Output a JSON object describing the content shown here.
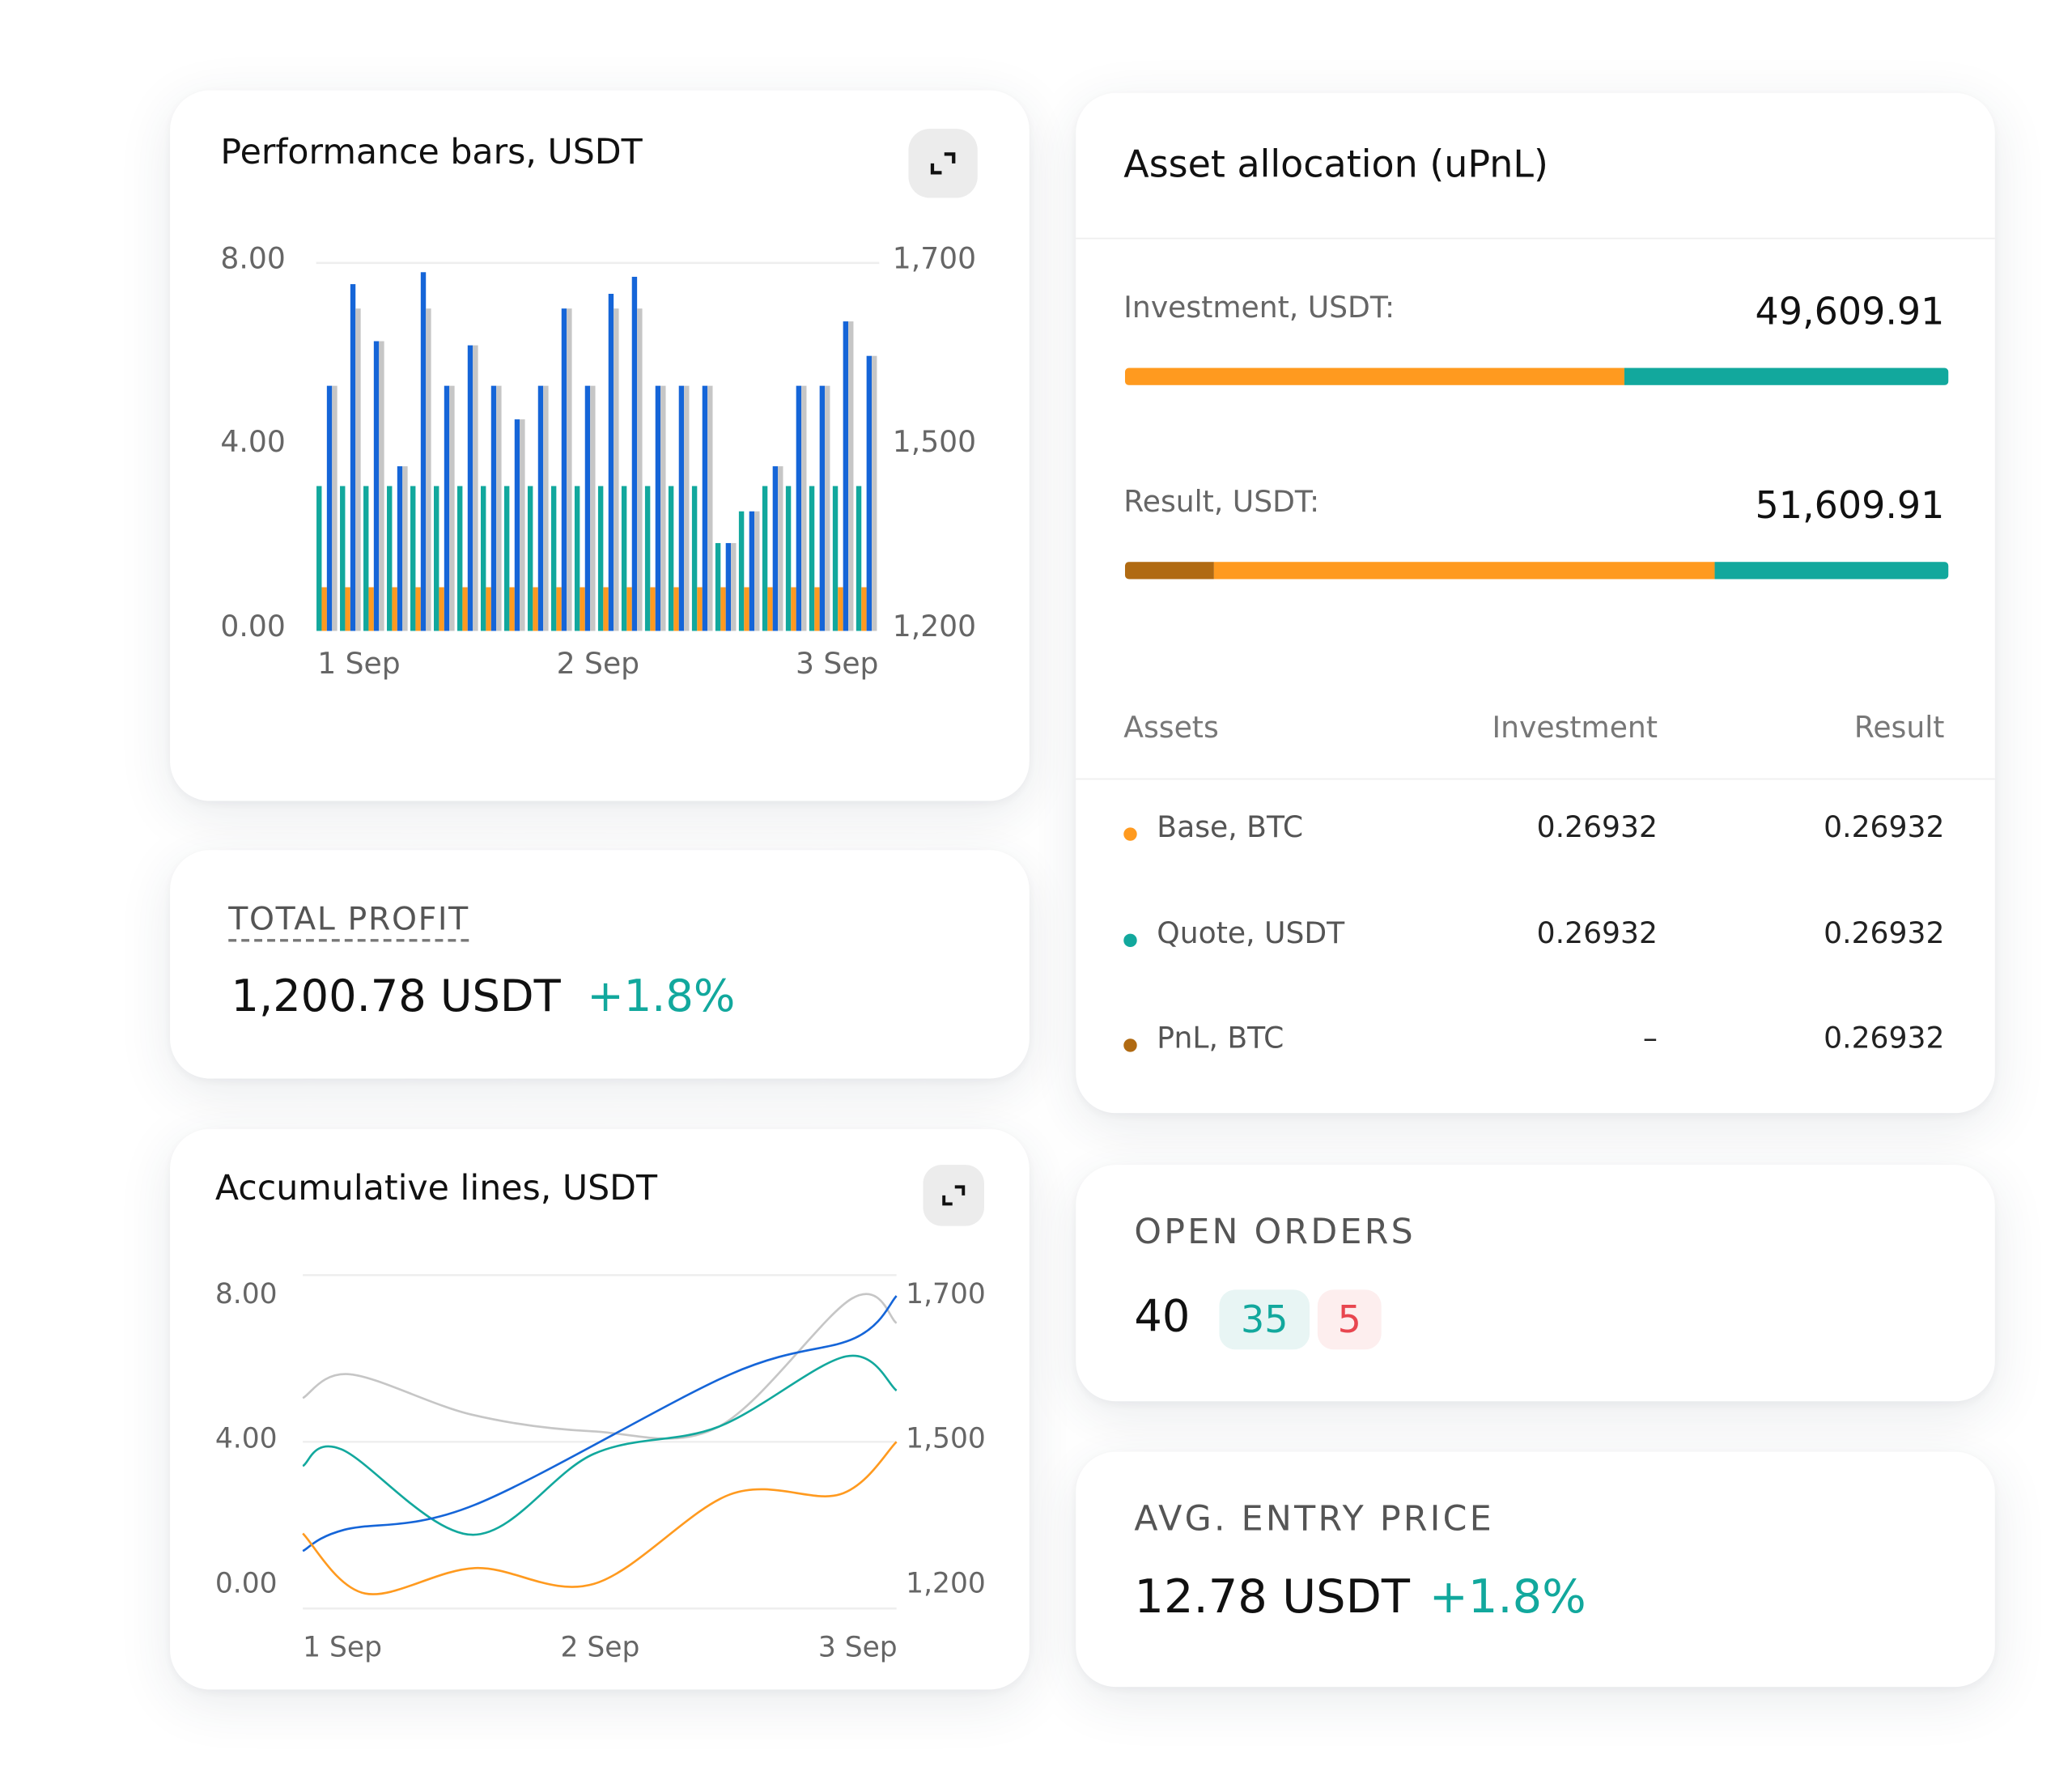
{
  "performance": {
    "title": "Performance bars, USDT",
    "expand_icon": "expand-icon",
    "left_ticks": [
      "8.00",
      "4.00",
      "0.00"
    ],
    "right_ticks": [
      "1,700",
      "1,500",
      "1,200"
    ],
    "x_ticks": [
      "1 Sep",
      "2 Sep",
      "3 Sep"
    ]
  },
  "total_profit": {
    "label": "TOTAL PROFIT",
    "value": "1,200.78 USDT",
    "change": "+1.8%"
  },
  "accumulative": {
    "title": "Accumulative lines, USDT",
    "expand_icon": "expand-icon",
    "left_ticks": [
      "8.00",
      "4.00",
      "0.00"
    ],
    "right_ticks": [
      "1,700",
      "1,500",
      "1,200"
    ],
    "x_ticks": [
      "1 Sep",
      "2 Sep",
      "3 Sep"
    ]
  },
  "allocation": {
    "title": "Asset allocation (uPnL)",
    "investment": {
      "label": "Investment, USDT:",
      "value": "49,609.91",
      "segments": [
        0.607,
        0.393
      ]
    },
    "result": {
      "label": "Result, USDT:",
      "value": "51,609.91",
      "segments": [
        0.108,
        0.608,
        0.284
      ]
    },
    "columns": [
      "Assets",
      "Investment",
      "Result"
    ],
    "rows": [
      {
        "asset": "Base, BTC",
        "investment": "0.26932",
        "result": "0.26932",
        "color": "#ff9a1f"
      },
      {
        "asset": "Quote, USDT",
        "investment": "0.26932",
        "result": "0.26932",
        "color": "#12a89d"
      },
      {
        "asset": "PnL, BTC",
        "investment": "–",
        "result": "0.26932",
        "color": "#b06a12"
      }
    ]
  },
  "open_orders": {
    "label": "OPEN ORDERS",
    "total": "40",
    "buy": "35",
    "sell": "5"
  },
  "avg_entry": {
    "label": "AVG. ENTRY PRICE",
    "value": "12.78 USDT",
    "change": "+1.8%"
  },
  "colors": {
    "blue": "#1565d8",
    "gray": "#c6c6c6",
    "teal": "#12a89d",
    "orange": "#ff9a1f",
    "dark_orange": "#b06a12",
    "sell": "#e8464f"
  },
  "chart_data": [
    {
      "type": "bar",
      "title": "Performance bars, USDT",
      "ylim": [
        0,
        8
      ],
      "y2lim": [
        1200,
        1700
      ],
      "x_ticks": [
        "1 Sep",
        "2 Sep",
        "3 Sep"
      ],
      "grid": true,
      "series": [
        {
          "color": "#12a89d",
          "values": [
            3.15,
            3.15,
            3.15,
            3.15,
            3.15,
            3.15,
            3.15,
            3.15,
            3.15,
            3.15,
            3.15,
            3.15,
            3.15,
            3.15,
            3.15,
            3.15,
            3.15,
            1.91,
            2.6,
            3.15,
            3.15,
            3.15,
            3.15,
            3.15
          ]
        },
        {
          "color": "#ff9a1f",
          "values": [
            0.95,
            0.95,
            0.95,
            0.95,
            0.95,
            0.95,
            0.95,
            0.95,
            0.95,
            0.95,
            0.95,
            0.95,
            0.95,
            0.95,
            0.95,
            0.95,
            0.95,
            0.95,
            0.95,
            0.95,
            0.95,
            0.95,
            0.95,
            0.95
          ]
        },
        {
          "color": "#1565d8",
          "values": [
            5.33,
            7.54,
            6.3,
            3.58,
            7.8,
            5.33,
            6.21,
            5.33,
            4.6,
            5.33,
            7.01,
            5.33,
            7.33,
            7.7,
            5.33,
            5.33,
            5.33,
            1.91,
            2.6,
            3.58,
            5.33,
            5.33,
            6.73,
            5.98
          ]
        },
        {
          "color": "#c6c6c6",
          "values": [
            5.33,
            7.01,
            6.3,
            3.58,
            7.01,
            5.33,
            6.21,
            5.33,
            4.6,
            5.33,
            7.01,
            5.33,
            7.01,
            7.01,
            5.33,
            5.33,
            5.33,
            1.91,
            2.6,
            3.58,
            5.33,
            5.33,
            6.73,
            5.98
          ]
        }
      ]
    },
    {
      "type": "line",
      "title": "Accumulative lines, USDT",
      "ylim": [
        0,
        8
      ],
      "y2lim": [
        1200,
        1700
      ],
      "x_ticks": [
        "1 Sep",
        "2 Sep",
        "3 Sep"
      ],
      "xlim_days": [
        0,
        2
      ],
      "grid": true,
      "series": [
        {
          "color": "#c6c6c6",
          "points": [
            [
              0,
              5.05
            ],
            [
              0.16,
              5.62
            ],
            [
              0.57,
              4.65
            ],
            [
              0.98,
              4.25
            ],
            [
              1.4,
              4.36
            ],
            [
              1.85,
              7.44
            ],
            [
              2,
              6.85
            ]
          ]
        },
        {
          "color": "#12a89d",
          "points": [
            [
              0,
              3.42
            ],
            [
              0.13,
              3.82
            ],
            [
              0.57,
              1.77
            ],
            [
              0.98,
              3.71
            ],
            [
              1.4,
              4.36
            ],
            [
              1.83,
              6.05
            ],
            [
              2,
              5.23
            ]
          ]
        },
        {
          "color": "#1565d8",
          "points": [
            [
              0,
              1.38
            ],
            [
              0.14,
              1.89
            ],
            [
              0.58,
              2.49
            ],
            [
              1.44,
              5.62
            ],
            [
              1.86,
              6.49
            ],
            [
              2,
              7.5
            ]
          ]
        },
        {
          "color": "#ff9a1f",
          "points": [
            [
              0,
              1.8
            ],
            [
              0.21,
              0.36
            ],
            [
              0.58,
              0.97
            ],
            [
              0.98,
              0.59
            ],
            [
              1.44,
              2.74
            ],
            [
              1.81,
              2.74
            ],
            [
              2,
              4.0
            ]
          ]
        }
      ]
    }
  ]
}
